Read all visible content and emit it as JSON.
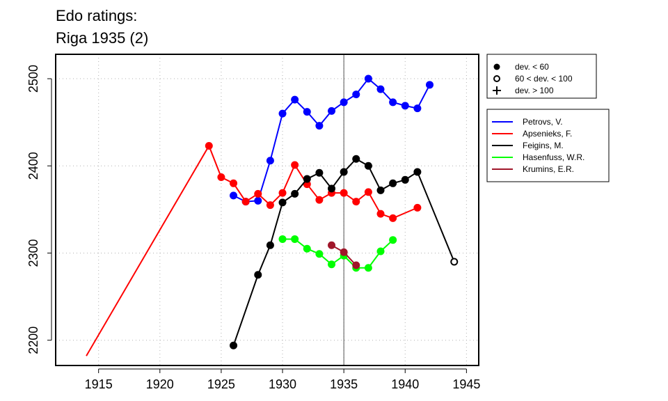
{
  "title_line1": "Edo ratings:",
  "title_line2": "Riga 1935 (2)",
  "chart_data": {
    "type": "line",
    "title": "Edo ratings: Riga 1935 (2)",
    "xlabel": "",
    "ylabel": "",
    "xlim": [
      1911.5,
      1946
    ],
    "ylim": [
      2171,
      2528
    ],
    "x_ticks": [
      1915,
      1920,
      1925,
      1930,
      1935,
      1940,
      1945
    ],
    "y_ticks": [
      2200,
      2300,
      2400,
      2500
    ],
    "grid": true,
    "reference_line_x": 1935,
    "marker_legend": {
      "position": "top-right",
      "entries": [
        {
          "symbol": "filled-circle",
          "label": "dev. < 60"
        },
        {
          "symbol": "open-circle",
          "label": "60 < dev. < 100"
        },
        {
          "symbol": "plus",
          "label": "dev. > 100"
        }
      ]
    },
    "legend_position": "right",
    "series": [
      {
        "name": "Petrovs, V.",
        "color": "#0000ff",
        "points": [
          {
            "x": 1926,
            "y": 2366,
            "m": "filled"
          },
          {
            "x": 1927,
            "y": 2359,
            "m": "filled"
          },
          {
            "x": 1928,
            "y": 2360,
            "m": "filled"
          },
          {
            "x": 1929,
            "y": 2406,
            "m": "filled"
          },
          {
            "x": 1930,
            "y": 2460,
            "m": "filled"
          },
          {
            "x": 1931,
            "y": 2476,
            "m": "filled"
          },
          {
            "x": 1932,
            "y": 2462,
            "m": "filled"
          },
          {
            "x": 1933,
            "y": 2446,
            "m": "filled"
          },
          {
            "x": 1934,
            "y": 2463,
            "m": "filled"
          },
          {
            "x": 1935,
            "y": 2473,
            "m": "filled"
          },
          {
            "x": 1936,
            "y": 2482,
            "m": "filled"
          },
          {
            "x": 1937,
            "y": 2500,
            "m": "filled"
          },
          {
            "x": 1938,
            "y": 2488,
            "m": "filled"
          },
          {
            "x": 1939,
            "y": 2473,
            "m": "filled"
          },
          {
            "x": 1940,
            "y": 2469,
            "m": "filled"
          },
          {
            "x": 1941,
            "y": 2466,
            "m": "filled"
          },
          {
            "x": 1942,
            "y": 2493,
            "m": "filled"
          }
        ]
      },
      {
        "name": "Apsenieks, F.",
        "color": "#ff0000",
        "points": [
          {
            "x": 1914,
            "y": 2182,
            "m": "none"
          },
          {
            "x": 1924,
            "y": 2423,
            "m": "filled"
          },
          {
            "x": 1925,
            "y": 2387,
            "m": "filled"
          },
          {
            "x": 1926,
            "y": 2380,
            "m": "filled"
          },
          {
            "x": 1927,
            "y": 2359,
            "m": "filled"
          },
          {
            "x": 1928,
            "y": 2368,
            "m": "filled"
          },
          {
            "x": 1929,
            "y": 2355,
            "m": "filled"
          },
          {
            "x": 1930,
            "y": 2369,
            "m": "filled"
          },
          {
            "x": 1931,
            "y": 2401,
            "m": "filled"
          },
          {
            "x": 1932,
            "y": 2379,
            "m": "filled"
          },
          {
            "x": 1933,
            "y": 2361,
            "m": "filled"
          },
          {
            "x": 1934,
            "y": 2369,
            "m": "filled"
          },
          {
            "x": 1935,
            "y": 2369,
            "m": "filled"
          },
          {
            "x": 1936,
            "y": 2359,
            "m": "filled"
          },
          {
            "x": 1937,
            "y": 2370,
            "m": "filled"
          },
          {
            "x": 1938,
            "y": 2345,
            "m": "filled"
          },
          {
            "x": 1939,
            "y": 2340,
            "m": "filled"
          },
          {
            "x": 1941,
            "y": 2352,
            "m": "filled"
          }
        ]
      },
      {
        "name": "Feigins, M.",
        "color": "#000000",
        "points": [
          {
            "x": 1926,
            "y": 2194,
            "m": "filled"
          },
          {
            "x": 1928,
            "y": 2275,
            "m": "filled"
          },
          {
            "x": 1929,
            "y": 2309,
            "m": "filled"
          },
          {
            "x": 1930,
            "y": 2358,
            "m": "filled"
          },
          {
            "x": 1931,
            "y": 2368,
            "m": "filled"
          },
          {
            "x": 1932,
            "y": 2385,
            "m": "filled"
          },
          {
            "x": 1933,
            "y": 2392,
            "m": "filled"
          },
          {
            "x": 1934,
            "y": 2374,
            "m": "filled"
          },
          {
            "x": 1935,
            "y": 2393,
            "m": "filled"
          },
          {
            "x": 1936,
            "y": 2408,
            "m": "filled"
          },
          {
            "x": 1937,
            "y": 2400,
            "m": "filled"
          },
          {
            "x": 1938,
            "y": 2372,
            "m": "filled"
          },
          {
            "x": 1939,
            "y": 2380,
            "m": "filled"
          },
          {
            "x": 1940,
            "y": 2384,
            "m": "filled"
          },
          {
            "x": 1941,
            "y": 2393,
            "m": "filled"
          },
          {
            "x": 1944,
            "y": 2290,
            "m": "open"
          }
        ]
      },
      {
        "name": "Hasenfuss, W.R.",
        "color": "#00ff00",
        "points": [
          {
            "x": 1930,
            "y": 2316,
            "m": "filled"
          },
          {
            "x": 1931,
            "y": 2316,
            "m": "filled"
          },
          {
            "x": 1932,
            "y": 2305,
            "m": "filled"
          },
          {
            "x": 1933,
            "y": 2299,
            "m": "filled"
          },
          {
            "x": 1934,
            "y": 2287,
            "m": "filled"
          },
          {
            "x": 1935,
            "y": 2297,
            "m": "filled"
          },
          {
            "x": 1936,
            "y": 2283,
            "m": "filled"
          },
          {
            "x": 1937,
            "y": 2283,
            "m": "filled"
          },
          {
            "x": 1938,
            "y": 2302,
            "m": "filled"
          },
          {
            "x": 1939,
            "y": 2315,
            "m": "filled"
          }
        ]
      },
      {
        "name": "Krumins, E.R.",
        "color": "#a0162a",
        "points": [
          {
            "x": 1934,
            "y": 2309,
            "m": "filled"
          },
          {
            "x": 1935,
            "y": 2301,
            "m": "filled"
          },
          {
            "x": 1936,
            "y": 2286,
            "m": "filled"
          }
        ]
      }
    ]
  }
}
